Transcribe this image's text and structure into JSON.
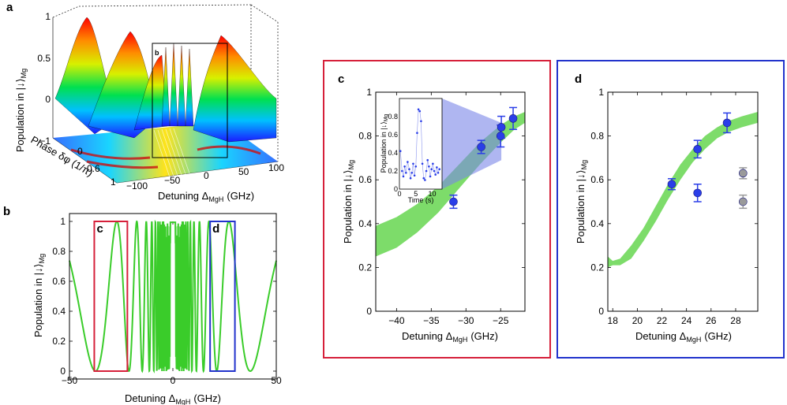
{
  "panels": {
    "a": "a",
    "b": "b",
    "c": "c",
    "d": "d",
    "b_box_c": "c",
    "b_box_d": "d",
    "a_plane": "b"
  },
  "chart_data": [
    {
      "id": "a",
      "type": "surface3d",
      "zlabel": "Population in |↓⟩",
      "zlabel_sub": "Mg",
      "xlabel": "Detuning Δ",
      "xlabel_sub": "MgH",
      "xlabel_unit": "(GHz)",
      "ylabel": "Phase δφ (1/π)",
      "z_ticks": [
        "1",
        "0.5",
        "0",
        "−1"
      ],
      "x_ticks": [
        "−100",
        "−50",
        "0",
        "50",
        "100"
      ],
      "y_ticks": [
        "0",
        "0.6",
        "1"
      ]
    },
    {
      "id": "b",
      "type": "line",
      "xlabel": "Detuning Δ",
      "xlabel_sub": "MgH",
      "xlabel_unit": "(GHz)",
      "ylabel": "Population in |↓⟩",
      "ylabel_sub": "Mg",
      "xlim": [
        -50,
        50
      ],
      "ylim": [
        0,
        1
      ],
      "x_ticks": [
        "−50",
        "0",
        "50"
      ],
      "y_ticks": [
        "0",
        "0.2",
        "0.4",
        "0.6",
        "0.8",
        "1"
      ],
      "highlight_boxes": [
        {
          "label": "c",
          "x_range": [
            -38,
            -22
          ],
          "y_range": [
            0,
            1
          ],
          "color": "#d6203a"
        },
        {
          "label": "d",
          "x_range": [
            18,
            30
          ],
          "y_range": [
            0,
            1
          ],
          "color": "#2233cc"
        }
      ],
      "series_color": "#3acc2a"
    },
    {
      "id": "c",
      "type": "scatter",
      "xlabel": "Detuning Δ",
      "xlabel_sub": "MgH",
      "xlabel_unit": "(GHz)",
      "ylabel": "Population in |↓⟩",
      "ylabel_sub": "Mg",
      "xlim": [
        -43,
        -21.5
      ],
      "ylim": [
        0,
        1
      ],
      "x_ticks": [
        "−40",
        "−35",
        "−30",
        "−25"
      ],
      "y_ticks": [
        "0",
        "0.2",
        "0.4",
        "0.6",
        "0.8",
        "1"
      ],
      "points": [
        {
          "x": -31.8,
          "y": 0.5,
          "err": 0.03
        },
        {
          "x": -27.8,
          "y": 0.75,
          "err": 0.03
        },
        {
          "x": -25.0,
          "y": 0.8,
          "err": 0.05
        },
        {
          "x": -24.9,
          "y": 0.84,
          "err": 0.05
        },
        {
          "x": -23.2,
          "y": 0.88,
          "err": 0.05
        }
      ],
      "band": {
        "x": [
          -43,
          -40,
          -37,
          -34,
          -31,
          -28,
          -25,
          -23,
          -21.5
        ],
        "lower": [
          0.25,
          0.29,
          0.36,
          0.45,
          0.56,
          0.67,
          0.77,
          0.83,
          0.86
        ],
        "upper": [
          0.39,
          0.43,
          0.49,
          0.57,
          0.67,
          0.77,
          0.85,
          0.89,
          0.91
        ]
      },
      "inset": {
        "xlabel": "Time (s)",
        "ylabel": "Population in |↓⟩",
        "ylabel_sub": "Mg",
        "xlim": [
          0,
          13
        ],
        "ylim": [
          0,
          1
        ],
        "x_ticks": [
          "0",
          "5",
          "10"
        ],
        "y_ticks": [
          "0",
          "0.2",
          "0.4",
          "0.6",
          "0.8"
        ],
        "t": [
          0.3,
          0.8,
          1.2,
          1.6,
          2.0,
          2.5,
          3.0,
          3.4,
          3.8,
          4.2,
          4.6,
          5.0,
          5.4,
          5.8,
          6.2,
          6.6,
          7.0,
          7.4,
          7.8,
          8.2,
          8.6,
          9.0,
          9.4,
          9.8,
          10.2,
          10.6,
          11.0,
          11.4,
          11.8,
          12.2
        ],
        "y": [
          0.42,
          0.2,
          0.14,
          0.25,
          0.18,
          0.3,
          0.22,
          0.12,
          0.18,
          0.28,
          0.15,
          0.25,
          0.62,
          0.88,
          0.86,
          0.75,
          0.28,
          0.12,
          0.1,
          0.2,
          0.32,
          0.25,
          0.14,
          0.22,
          0.28,
          0.2,
          0.16,
          0.24,
          0.18,
          0.22
        ]
      }
    },
    {
      "id": "d",
      "type": "scatter",
      "xlabel": "Detuning Δ",
      "xlabel_sub": "MgH",
      "xlabel_unit": "(GHz)",
      "ylabel": "Population in |↓⟩",
      "ylabel_sub": "Mg",
      "xlim": [
        17.6,
        29.8
      ],
      "ylim": [
        0,
        1
      ],
      "x_ticks": [
        "18",
        "20",
        "22",
        "24",
        "26",
        "28"
      ],
      "y_ticks": [
        "0",
        "0.2",
        "0.4",
        "0.6",
        "0.8",
        "1"
      ],
      "points": [
        {
          "x": 22.8,
          "y": 0.58,
          "err": 0.025,
          "color": "#2a3ee8"
        },
        {
          "x": 24.9,
          "y": 0.74,
          "err": 0.04,
          "color": "#2a3ee8"
        },
        {
          "x": 24.9,
          "y": 0.54,
          "err": 0.04,
          "color": "#2a3ee8"
        },
        {
          "x": 27.3,
          "y": 0.86,
          "err": 0.045,
          "color": "#2a3ee8"
        },
        {
          "x": 28.6,
          "y": 0.63,
          "err": 0.025,
          "color": "#9a9a9a"
        },
        {
          "x": 28.6,
          "y": 0.5,
          "err": 0.03,
          "color": "#9a9a9a"
        }
      ],
      "band": {
        "x": [
          17.6,
          18.0,
          18.6,
          19.5,
          20.5,
          21.5,
          22.5,
          23.5,
          24.5,
          25.5,
          26.5,
          27.5,
          28.5,
          29.8
        ],
        "lower": [
          0.2,
          0.21,
          0.21,
          0.24,
          0.32,
          0.41,
          0.51,
          0.6,
          0.68,
          0.74,
          0.79,
          0.82,
          0.84,
          0.86
        ],
        "upper": [
          0.25,
          0.23,
          0.24,
          0.3,
          0.38,
          0.48,
          0.58,
          0.67,
          0.74,
          0.8,
          0.84,
          0.87,
          0.89,
          0.91
        ]
      }
    }
  ]
}
